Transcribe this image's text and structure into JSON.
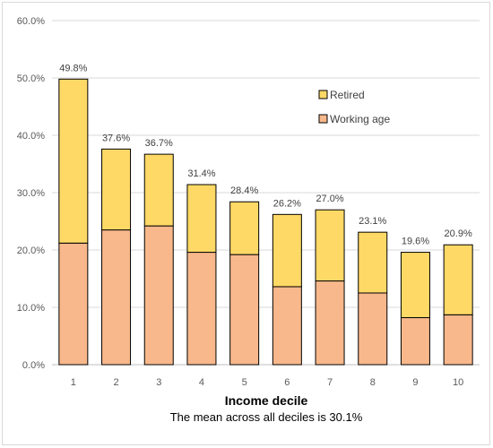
{
  "chart_data": {
    "type": "bar",
    "stacked": true,
    "categories": [
      "1",
      "2",
      "3",
      "4",
      "5",
      "6",
      "7",
      "8",
      "9",
      "10"
    ],
    "series": [
      {
        "name": "Working age",
        "color": "#F8B88B",
        "values": [
          21.2,
          23.5,
          24.2,
          19.6,
          19.2,
          13.6,
          14.6,
          12.5,
          8.2,
          8.7
        ]
      },
      {
        "name": "Retired",
        "color": "#FFD966",
        "values": [
          28.6,
          14.1,
          12.5,
          11.8,
          9.2,
          12.6,
          12.4,
          10.6,
          11.4,
          12.2
        ]
      }
    ],
    "totals": [
      49.8,
      37.6,
      36.7,
      31.4,
      28.4,
      26.2,
      27.0,
      23.1,
      19.6,
      20.9
    ],
    "total_labels": [
      "49.8%",
      "37.6%",
      "36.7%",
      "31.4%",
      "28.4%",
      "26.2%",
      "27.0%",
      "23.1%",
      "19.6%",
      "20.9%"
    ],
    "ylim": [
      0,
      60
    ],
    "yticks": [
      0,
      10,
      20,
      30,
      40,
      50,
      60
    ],
    "ytick_labels": [
      "0.0%",
      "10.0%",
      "20.0%",
      "30.0%",
      "40.0%",
      "50.0%",
      "60.0%"
    ],
    "xlabel": "Income decile",
    "ylabel": "",
    "note": "The mean across all deciles is 30.1%",
    "legend": [
      {
        "label": "Retired",
        "color": "#FFD966"
      },
      {
        "label": "Working age",
        "color": "#F8B88B"
      }
    ],
    "legend_position": "top-right",
    "grid": "horizontal"
  }
}
